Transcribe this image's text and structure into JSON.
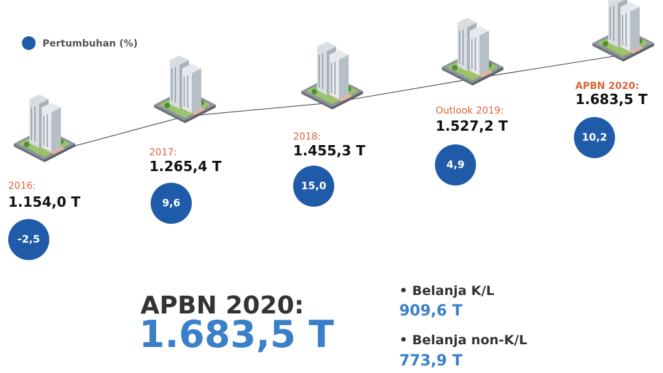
{
  "legend": {
    "label": "Pertumbuhan (%)"
  },
  "milestones": [
    {
      "label": "2016:",
      "value": "1.154,0 T",
      "growth": "-2,5"
    },
    {
      "label": "2017:",
      "value": "1.265,4 T",
      "growth": "9,6"
    },
    {
      "label": "2018:",
      "value": "1.455,3 T",
      "growth": "15,0"
    },
    {
      "label": "Outlook 2019:",
      "value": "1.527,2 T",
      "growth": "4,9"
    },
    {
      "label": "APBN 2020:",
      "value": "1.683,5 T",
      "growth": "10,2"
    }
  ],
  "summary": {
    "title": "APBN 2020:",
    "total": "1.683,5 T",
    "items": [
      {
        "label": "• Belanja K/L",
        "value": "909,6 T"
      },
      {
        "label": "• Belanja non-K/L",
        "value": "773,9 T"
      }
    ]
  }
}
